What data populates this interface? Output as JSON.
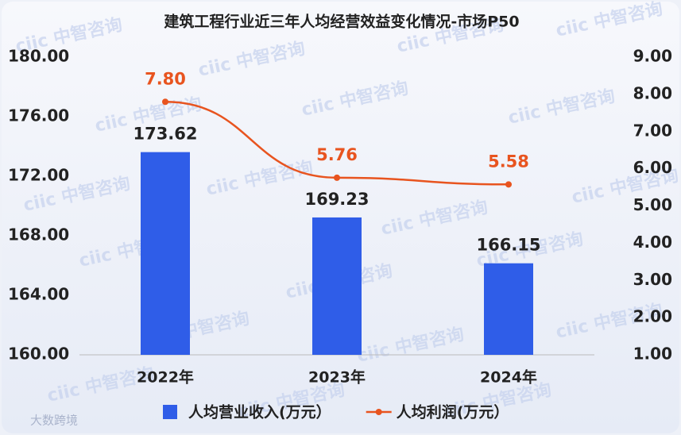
{
  "chart_data": {
    "type": "bar-line",
    "title": "建筑工程行业近三年人均经营效益变化情况-市场P50",
    "categories": [
      "2022年",
      "2023年",
      "2024年"
    ],
    "series": [
      {
        "name": "人均营业收入(万元）",
        "type": "bar",
        "color": "#2f5de8",
        "values": [
          173.62,
          169.23,
          166.15
        ]
      },
      {
        "name": "人均利润(万元）",
        "type": "line",
        "axis": "y2",
        "color": "#e8541f",
        "values": [
          7.8,
          5.76,
          5.58
        ],
        "value_labels": [
          "7.80",
          "5.76",
          "5.58"
        ]
      }
    ],
    "ylim": [
      160,
      180
    ],
    "yticks": [
      {
        "value": 160,
        "label": "160.00"
      },
      {
        "value": 164,
        "label": "164.00"
      },
      {
        "value": 168,
        "label": "168.00"
      },
      {
        "value": 172,
        "label": "172.00"
      },
      {
        "value": 176,
        "label": "176.00"
      },
      {
        "value": 180,
        "label": "180.00"
      }
    ],
    "y2lim": [
      1,
      9
    ],
    "y2ticks": [
      {
        "value": 1,
        "label": "1.00"
      },
      {
        "value": 2,
        "label": "2.00"
      },
      {
        "value": 3,
        "label": "3.00"
      },
      {
        "value": 4,
        "label": "4.00"
      },
      {
        "value": 5,
        "label": "5.00"
      },
      {
        "value": 6,
        "label": "6.00"
      },
      {
        "value": 7,
        "label": "7.00"
      },
      {
        "value": 8,
        "label": "8.00"
      },
      {
        "value": 9,
        "label": "9.00"
      }
    ],
    "grid": false,
    "legend": "bottom"
  },
  "watermark": "ciic 中智咨询",
  "source_mark": "大数跨境"
}
